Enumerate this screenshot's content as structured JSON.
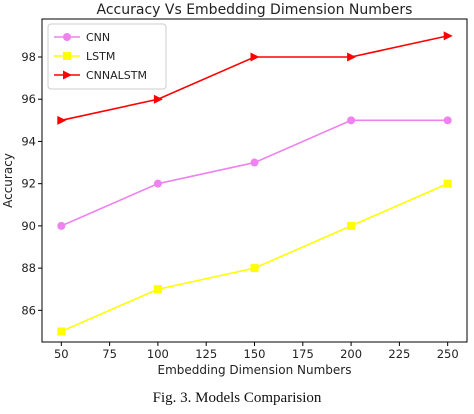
{
  "chart_data": {
    "type": "line",
    "title": "Accuracy Vs Embedding Dimension Numbers",
    "xlabel": "Embedding Dimension Numbers",
    "ylabel": "Accuracy",
    "x": [
      50,
      100,
      150,
      200,
      250
    ],
    "xlim": [
      40,
      260
    ],
    "ylim": [
      84.5,
      99.8
    ],
    "xticks": [
      50,
      75,
      100,
      125,
      150,
      175,
      200,
      225,
      250
    ],
    "yticks": [
      86,
      88,
      90,
      92,
      94,
      96,
      98
    ],
    "grid": false,
    "legend_position": "top-left",
    "series": [
      {
        "name": "CNN",
        "values": [
          90,
          92,
          93,
          95,
          95
        ],
        "color": "#ee82ee",
        "marker": "circle"
      },
      {
        "name": "LSTM",
        "values": [
          85,
          87,
          88,
          90,
          92
        ],
        "color": "#ffff00",
        "marker": "square"
      },
      {
        "name": "CNNALSTM",
        "values": [
          95,
          96,
          98,
          98,
          99
        ],
        "color": "#ff0000",
        "marker": "triangle-right"
      }
    ]
  },
  "caption": "Fig. 3.   Models Comparision"
}
